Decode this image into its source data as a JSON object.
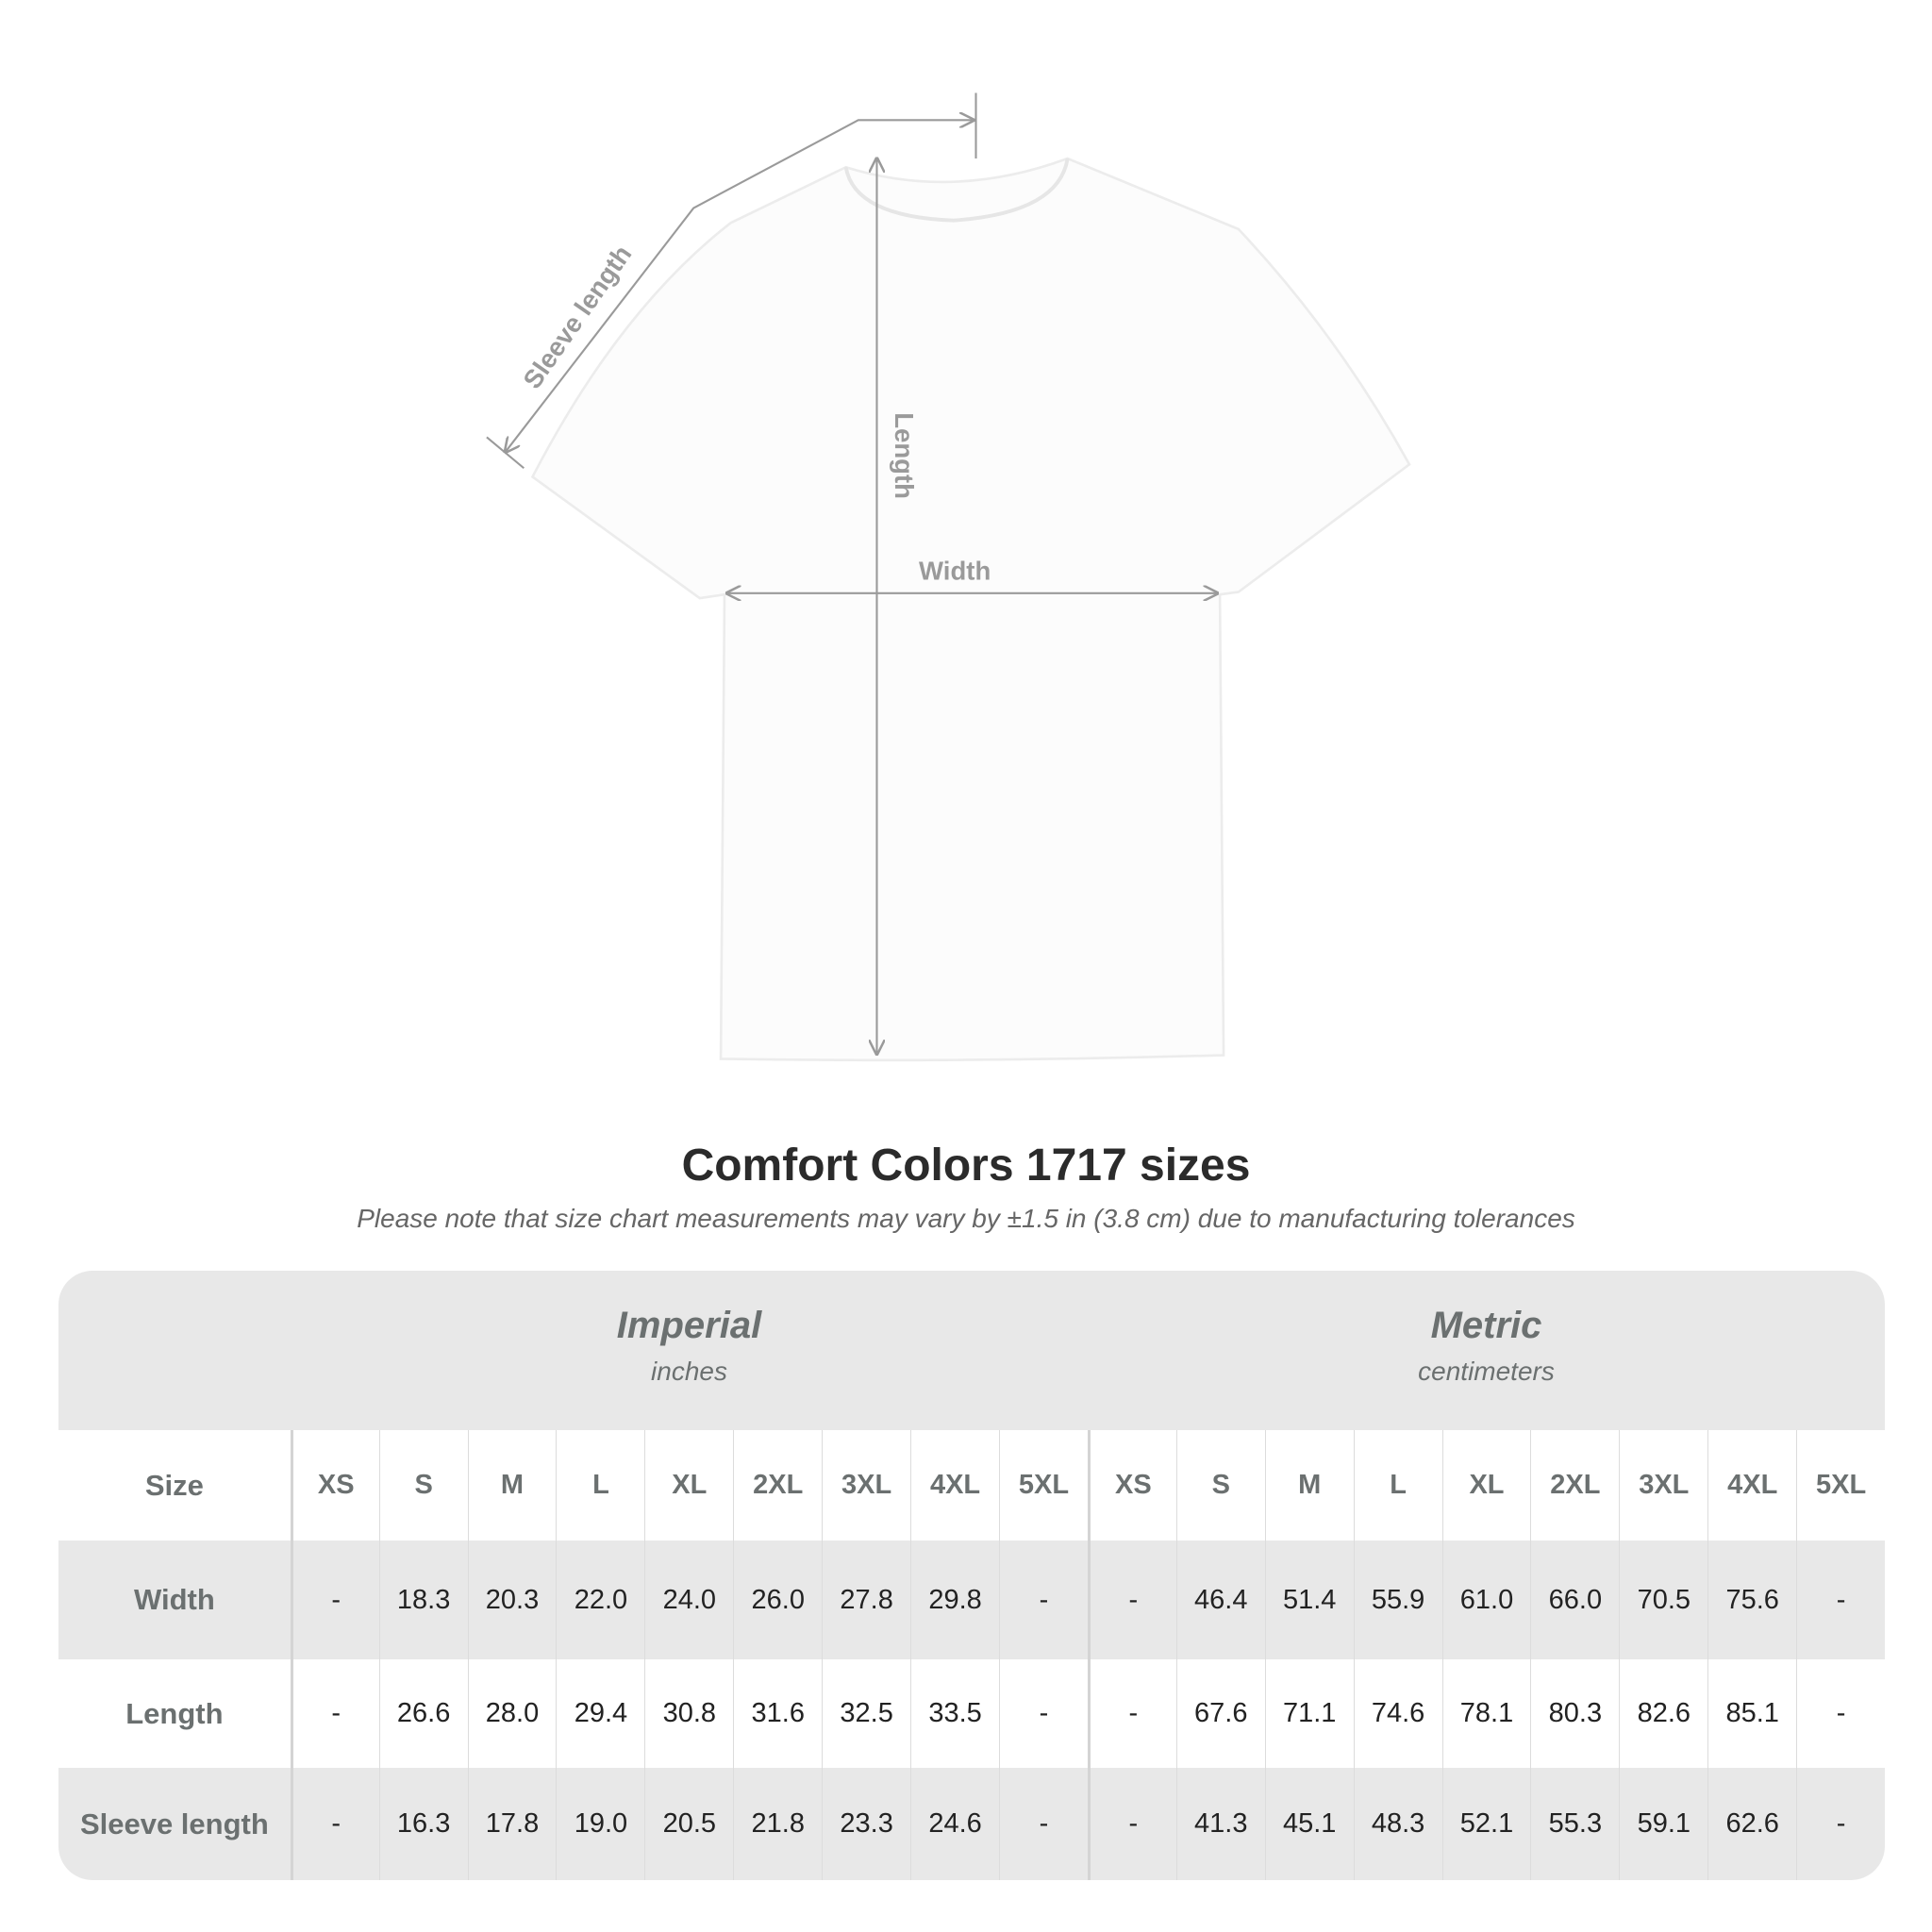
{
  "diagram": {
    "labels": {
      "sleeve": "Sleeve length",
      "length": "Length",
      "width": "Width"
    },
    "line_color": "#9a9a9a"
  },
  "title": "Comfort Colors 1717 sizes",
  "subtitle": "Please note that size chart measurements may vary by ±1.5 in (3.8 cm) due to manufacturing tolerances",
  "table": {
    "imperial": {
      "title": "Imperial",
      "unit": "inches"
    },
    "metric": {
      "title": "Metric",
      "unit": "centimeters"
    },
    "size_label": "Size",
    "sizes": [
      "XS",
      "S",
      "M",
      "L",
      "XL",
      "2XL",
      "3XL",
      "4XL",
      "5XL"
    ],
    "rows": [
      {
        "label": "Width",
        "imperial": [
          "-",
          "18.3",
          "20.3",
          "22.0",
          "24.0",
          "26.0",
          "27.8",
          "29.8",
          "-"
        ],
        "metric": [
          "-",
          "46.4",
          "51.4",
          "55.9",
          "61.0",
          "66.0",
          "70.5",
          "75.6",
          "-"
        ]
      },
      {
        "label": "Length",
        "imperial": [
          "-",
          "26.6",
          "28.0",
          "29.4",
          "30.8",
          "31.6",
          "32.5",
          "33.5",
          "-"
        ],
        "metric": [
          "-",
          "67.6",
          "71.1",
          "74.6",
          "78.1",
          "80.3",
          "82.6",
          "85.1",
          "-"
        ]
      },
      {
        "label": "Sleeve length",
        "imperial": [
          "-",
          "16.3",
          "17.8",
          "19.0",
          "20.5",
          "21.8",
          "23.3",
          "24.6",
          "-"
        ],
        "metric": [
          "-",
          "41.3",
          "45.1",
          "48.3",
          "52.1",
          "55.3",
          "59.1",
          "62.6",
          "-"
        ]
      }
    ],
    "colors": {
      "band": "#e8e8e8",
      "label_text": "#6b7070"
    }
  }
}
